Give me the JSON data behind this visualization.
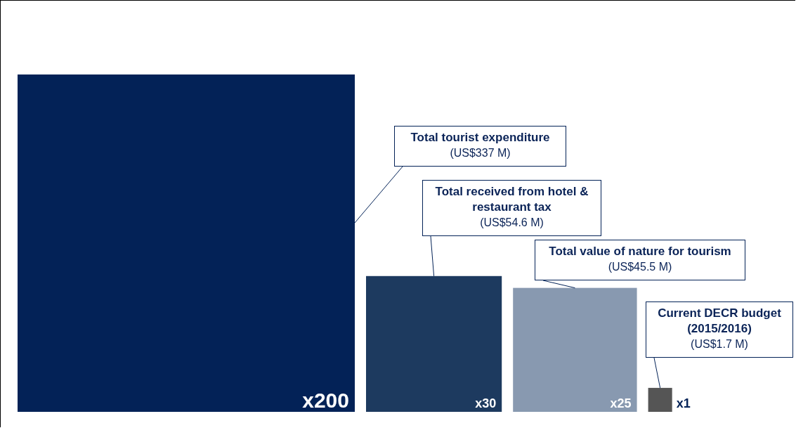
{
  "chart_data": {
    "type": "other",
    "categories": [
      "Total tourist expenditure",
      "Total received from hotel & restaurant tax",
      "Total value of nature for tourism",
      "Current DECR budget (2015/2016)"
    ],
    "values": [
      337,
      54.6,
      45.5,
      1.7
    ],
    "value_labels": [
      "(US$337 M)",
      "(US$54.6 M)",
      "(US$45.5 M)",
      "(US$1.7 M)"
    ],
    "colors": [
      "#032257",
      "#1d3a5f",
      "#8899b0",
      "#555555"
    ],
    "annotations": [
      "x200",
      "x30",
      "x25",
      "x1"
    ]
  }
}
